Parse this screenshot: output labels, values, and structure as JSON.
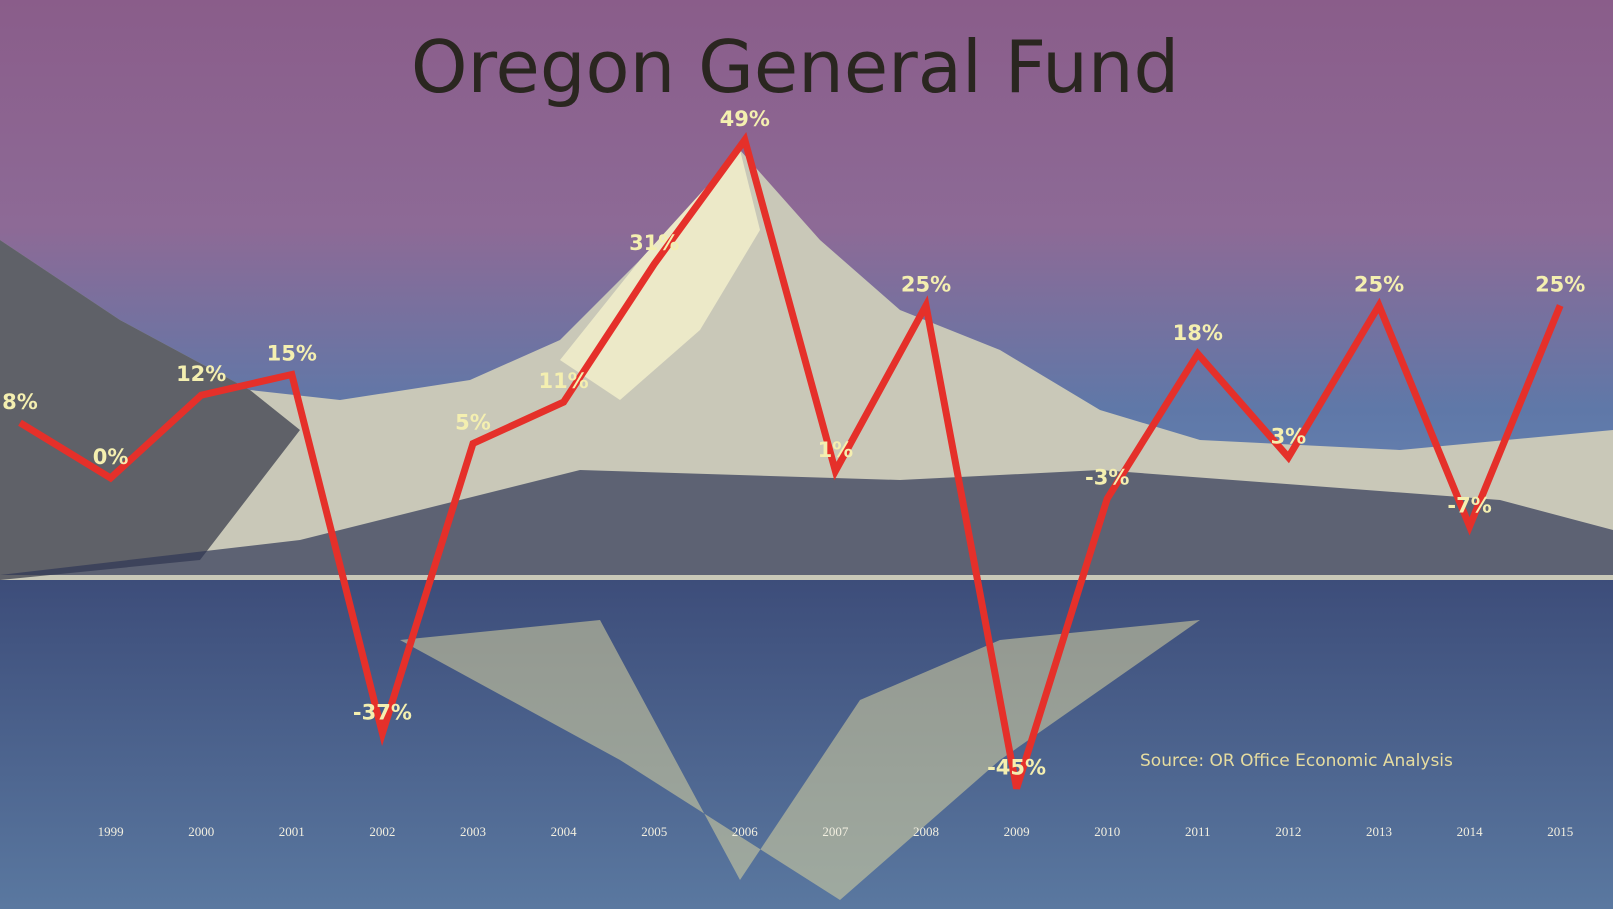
{
  "chart_data": {
    "type": "line",
    "title": "Oregon General Fund",
    "categories": [
      null,
      "1999",
      "2000",
      "2001",
      "2002",
      "2003",
      "2004",
      "2005",
      "2006",
      "2007",
      "2008",
      "2009",
      "2010",
      "2011",
      "2012",
      "2013",
      "2014",
      "2015"
    ],
    "series": [
      {
        "name": "Oregon General Fund",
        "color": "#e5302a",
        "values": [
          8,
          0,
          12,
          15,
          -37,
          5,
          11,
          31,
          49,
          1,
          25,
          -45,
          -3,
          18,
          3,
          25,
          -7,
          25
        ],
        "value_labels": [
          "8%",
          "0%",
          "12%",
          "15%",
          "-37%",
          "5%",
          "11%",
          "31%",
          "49%",
          "1%",
          "25%",
          "-45%",
          "-3%",
          "18%",
          "3%",
          "25%",
          "-7%",
          "25%"
        ]
      }
    ],
    "ylim": [
      -55,
      55
    ],
    "annotation": "Source: OR Office Economic Analysis"
  }
}
